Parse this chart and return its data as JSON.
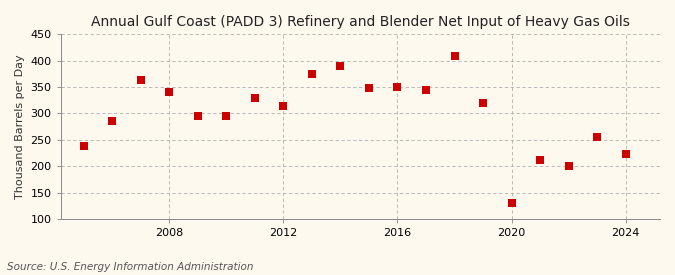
{
  "title": "Annual Gulf Coast (PADD 3) Refinery and Blender Net Input of Heavy Gas Oils",
  "ylabel": "Thousand Barrels per Day",
  "source": "Source: U.S. Energy Information Administration",
  "years": [
    2005,
    2006,
    2007,
    2008,
    2009,
    2010,
    2011,
    2012,
    2013,
    2014,
    2015,
    2016,
    2017,
    2018,
    2019,
    2020,
    2021,
    2022,
    2023,
    2024
  ],
  "values": [
    238,
    285,
    363,
    341,
    295,
    296,
    329,
    315,
    375,
    390,
    348,
    350,
    344,
    408,
    320,
    130,
    212,
    200,
    255,
    224
  ],
  "marker_color": "#cc0000",
  "marker_size": 28,
  "background_color": "#fef9ee",
  "grid_color": "#b0b0b0",
  "ylim": [
    100,
    450
  ],
  "yticks": [
    100,
    150,
    200,
    250,
    300,
    350,
    400,
    450
  ],
  "xticks": [
    2008,
    2012,
    2016,
    2020,
    2024
  ],
  "xlim": [
    2004.2,
    2025.2
  ],
  "title_fontsize": 10,
  "label_fontsize": 8,
  "tick_fontsize": 8,
  "source_fontsize": 7.5
}
